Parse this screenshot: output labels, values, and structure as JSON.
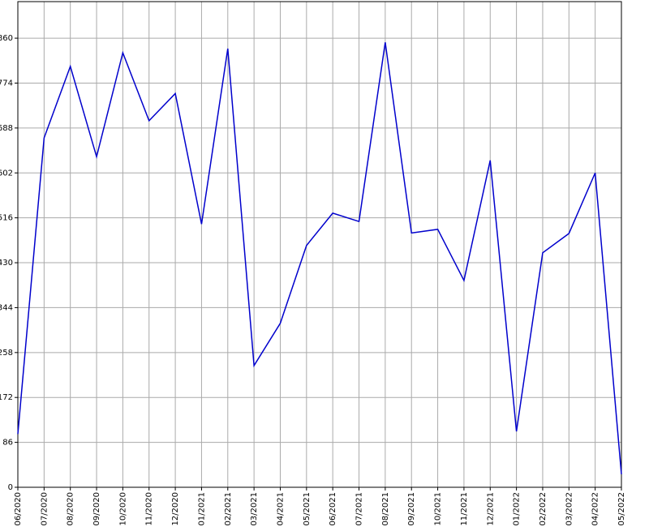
{
  "chart_data": {
    "type": "line",
    "x": [
      "06/2020",
      "07/2020",
      "08/2020",
      "09/2020",
      "10/2020",
      "11/2020",
      "12/2020",
      "01/2021",
      "02/2021",
      "03/2021",
      "04/2021",
      "05/2021",
      "06/2021",
      "07/2021",
      "08/2021",
      "09/2021",
      "10/2021",
      "11/2021",
      "12/2021",
      "01/2022",
      "02/2022",
      "03/2022",
      "04/2022",
      "05/2022"
    ],
    "series": [
      {
        "color": "#0000cc",
        "values": [
          102,
          669,
          806,
          633,
          832,
          702,
          754,
          504,
          840,
          233,
          314,
          463,
          525,
          509,
          852,
          487,
          494,
          396,
          626,
          107,
          449,
          486,
          602,
          25
        ]
      }
    ],
    "ylim": [
      0,
      930
    ],
    "yticks": [
      0,
      86,
      172,
      258,
      344,
      430,
      516,
      602,
      688,
      774,
      860
    ],
    "grid": true
  }
}
